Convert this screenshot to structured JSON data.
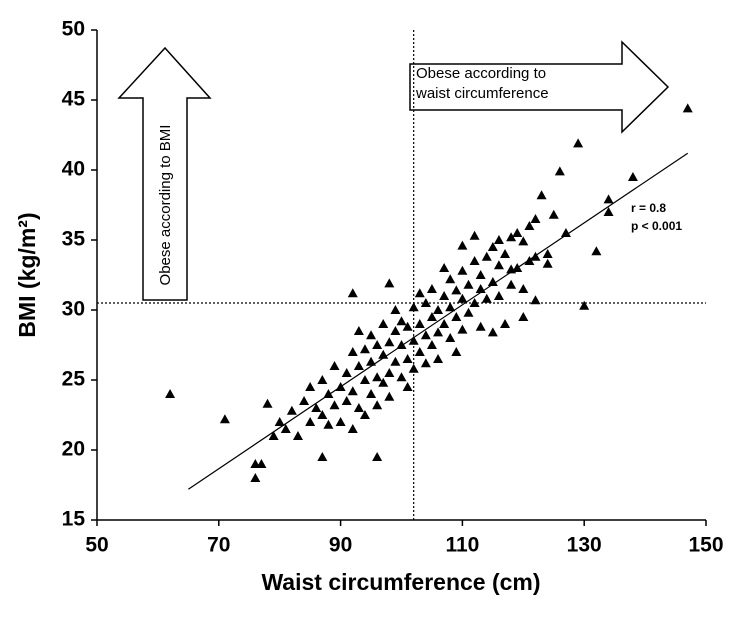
{
  "chart_data": {
    "type": "scatter",
    "x_label": "Waist circumference (cm)",
    "y_label": "BMI (kg/m²)",
    "xlim": [
      50,
      150
    ],
    "ylim": [
      15,
      50
    ],
    "xticks": [
      50,
      70,
      90,
      110,
      130,
      150
    ],
    "yticks": [
      15,
      20,
      25,
      30,
      35,
      40,
      45,
      50
    ],
    "color": "#000000",
    "annotations": {
      "correlation": "r = 0.8",
      "p_value": "p < 0.001",
      "bmi_arrow": "Obese according to BMI",
      "waist_arrow": "Obese according to waist circumference"
    },
    "reference_lines": {
      "x": 102,
      "y": 30.5
    },
    "regression": {
      "x": [
        65,
        147
      ],
      "y": [
        17.2,
        41.2
      ]
    },
    "x": [
      62,
      71,
      76,
      76,
      77,
      78,
      87,
      92,
      96,
      98,
      130,
      129,
      138,
      147,
      134,
      134,
      132,
      126,
      123,
      125,
      122,
      119,
      124,
      122,
      120,
      116,
      110,
      112,
      118,
      122,
      113,
      79,
      80,
      81,
      82,
      83,
      84,
      85,
      85,
      86,
      87,
      87,
      88,
      88,
      89,
      89,
      90,
      90,
      91,
      91,
      92,
      92,
      92,
      93,
      93,
      93,
      94,
      94,
      94,
      95,
      95,
      95,
      96,
      96,
      96,
      97,
      97,
      97,
      98,
      98,
      98,
      99,
      99,
      99,
      100,
      100,
      100,
      101,
      101,
      101,
      102,
      102,
      102,
      103,
      103,
      103,
      104,
      104,
      104,
      105,
      105,
      105,
      106,
      106,
      106,
      107,
      107,
      107,
      108,
      108,
      108,
      109,
      109,
      109,
      110,
      110,
      110,
      111,
      111,
      112,
      112,
      113,
      113,
      114,
      114,
      115,
      115,
      116,
      116,
      117,
      118,
      118,
      119,
      120,
      121,
      121,
      120,
      117,
      115,
      124,
      127
    ],
    "y": [
      24,
      22.2,
      18,
      19,
      19,
      23.3,
      19.5,
      31.2,
      19.5,
      31.9,
      30.3,
      41.9,
      39.5,
      44.4,
      37.9,
      37,
      34.2,
      39.9,
      38.2,
      36.8,
      36.5,
      35.5,
      34,
      33.8,
      34.9,
      35,
      34.6,
      35.3,
      32.9,
      30.7,
      31.5,
      21,
      22,
      21.5,
      22.8,
      21,
      23.5,
      22,
      24.5,
      23,
      22.5,
      25,
      24,
      21.8,
      23.2,
      26,
      24.5,
      22,
      25.5,
      23.5,
      27,
      24.2,
      21.5,
      26,
      23,
      28.5,
      25,
      22.5,
      27.2,
      26.3,
      24,
      28.2,
      25.2,
      27.5,
      23.2,
      26.8,
      24.8,
      29,
      27.7,
      25.5,
      23.8,
      28.5,
      26.3,
      30,
      27.5,
      25.2,
      29.2,
      26.5,
      28.8,
      24.5,
      27.8,
      30.2,
      25.8,
      29,
      27,
      31.2,
      28.2,
      30.5,
      26.2,
      29.5,
      27.5,
      31.5,
      30,
      28.4,
      26.5,
      31,
      29,
      33,
      30.2,
      28,
      32.2,
      31.4,
      29.5,
      27,
      30.8,
      32.8,
      28.6,
      31.8,
      29.8,
      33.5,
      30.5,
      32.5,
      28.8,
      33.8,
      30.8,
      32,
      34.5,
      31,
      33.2,
      34,
      31.8,
      35.2,
      33,
      31.5,
      33.5,
      36,
      29.5,
      29,
      28.4,
      33.3,
      35.5
    ]
  }
}
